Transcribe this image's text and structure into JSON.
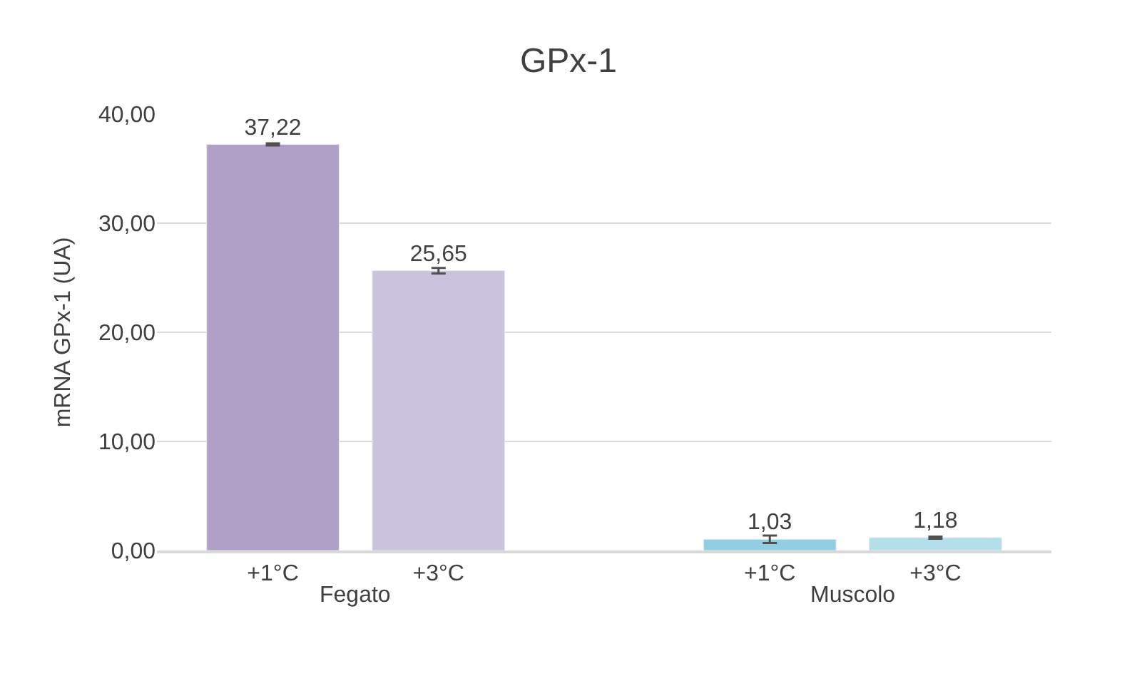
{
  "chart_data": {
    "type": "bar",
    "title": "GPx-1",
    "ylabel": "mRNA GPx-1 (UA)",
    "categories": [
      "+1°C",
      "+3°C",
      null,
      "+1°C",
      "+3°C"
    ],
    "values": [
      37.22,
      25.65,
      null,
      1.03,
      1.18
    ],
    "colors": [
      "#b0a0c8",
      "#cbc2de",
      null,
      "#92cee0",
      "#b4dfea"
    ],
    "errors": [
      0.1,
      0.25,
      null,
      0.35,
      0.1
    ],
    "value_labels": [
      "37,22",
      "25,65",
      null,
      "1,03",
      "1,18"
    ],
    "annotations": [
      "Fegato",
      "Muscolo"
    ],
    "ylim": [
      0,
      40
    ],
    "yticks": [
      {
        "value": 0,
        "label": "0,00"
      },
      {
        "value": 10,
        "label": "10,00"
      },
      {
        "value": 20,
        "label": "20,00"
      },
      {
        "value": 30,
        "label": "30,00"
      },
      {
        "value": 40,
        "label": "40,00"
      }
    ],
    "grid": "y",
    "legend": false
  }
}
